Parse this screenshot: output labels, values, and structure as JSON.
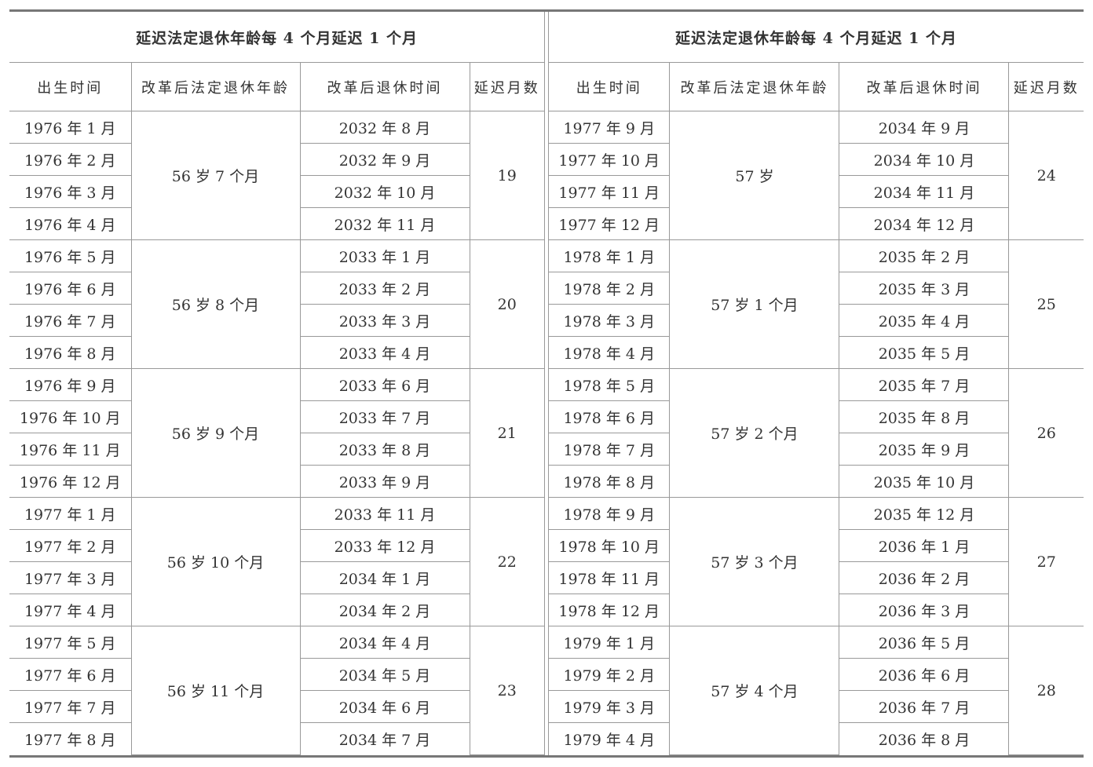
{
  "tables": [
    {
      "title": "延迟法定退休年龄每 4 个月延迟 1 个月",
      "headers": [
        "出生时间",
        "改革后法定退休年龄",
        "改革后退休时间",
        "延迟月数"
      ],
      "groups": [
        {
          "births": [
            "1976 年 1 月",
            "1976 年 2 月",
            "1976 年 3 月",
            "1976 年 4 月"
          ],
          "age": "56 岁 7 个月",
          "retire": [
            "2032 年 8 月",
            "2032 年 9 月",
            "2032 年 10 月",
            "2032 年 11 月"
          ],
          "delay": "19"
        },
        {
          "births": [
            "1976 年 5 月",
            "1976 年 6 月",
            "1976 年 7 月",
            "1976 年 8 月"
          ],
          "age": "56 岁 8 个月",
          "retire": [
            "2033 年 1 月",
            "2033 年 2 月",
            "2033 年 3 月",
            "2033 年 4 月"
          ],
          "delay": "20"
        },
        {
          "births": [
            "1976 年 9 月",
            "1976 年 10 月",
            "1976 年 11 月",
            "1976 年 12 月"
          ],
          "age": "56 岁 9 个月",
          "retire": [
            "2033 年 6 月",
            "2033 年 7 月",
            "2033 年 8 月",
            "2033 年 9 月"
          ],
          "delay": "21"
        },
        {
          "births": [
            "1977 年 1 月",
            "1977 年 2 月",
            "1977 年 3 月",
            "1977 年 4 月"
          ],
          "age": "56 岁 10 个月",
          "retire": [
            "2033 年 11 月",
            "2033 年 12 月",
            "2034 年 1 月",
            "2034 年 2 月"
          ],
          "delay": "22"
        },
        {
          "births": [
            "1977 年 5 月",
            "1977 年 6 月",
            "1977 年 7 月",
            "1977 年 8 月"
          ],
          "age": "56 岁 11 个月",
          "retire": [
            "2034 年 4 月",
            "2034 年 5 月",
            "2034 年 6 月",
            "2034 年 7 月"
          ],
          "delay": "23"
        }
      ]
    },
    {
      "title": "延迟法定退休年龄每 4 个月延迟 1 个月",
      "headers": [
        "出生时间",
        "改革后法定退休年龄",
        "改革后退休时间",
        "延迟月数"
      ],
      "groups": [
        {
          "births": [
            "1977 年 9 月",
            "1977 年 10 月",
            "1977 年 11 月",
            "1977 年 12 月"
          ],
          "age": "57 岁",
          "retire": [
            "2034 年 9 月",
            "2034 年 10 月",
            "2034 年 11 月",
            "2034 年 12 月"
          ],
          "delay": "24"
        },
        {
          "births": [
            "1978 年 1 月",
            "1978 年 2 月",
            "1978 年 3 月",
            "1978 年 4 月"
          ],
          "age": "57 岁 1 个月",
          "retire": [
            "2035 年 2 月",
            "2035 年 3 月",
            "2035 年 4 月",
            "2035 年 5 月"
          ],
          "delay": "25"
        },
        {
          "births": [
            "1978 年 5 月",
            "1978 年 6 月",
            "1978 年 7 月",
            "1978 年 8 月"
          ],
          "age": "57 岁 2 个月",
          "retire": [
            "2035 年 7 月",
            "2035 年 8 月",
            "2035 年 9 月",
            "2035 年 10 月"
          ],
          "delay": "26"
        },
        {
          "births": [
            "1978 年 9 月",
            "1978 年 10 月",
            "1978 年 11 月",
            "1978 年 12 月"
          ],
          "age": "57 岁 3 个月",
          "retire": [
            "2035 年 12 月",
            "2036 年 1 月",
            "2036 年 2 月",
            "2036 年 3 月"
          ],
          "delay": "27"
        },
        {
          "births": [
            "1979 年 1 月",
            "1979 年 2 月",
            "1979 年 3 月",
            "1979 年 4 月"
          ],
          "age": "57 岁 4 个月",
          "retire": [
            "2036 年 5 月",
            "2036 年 6 月",
            "2036 年 7 月",
            "2036 年 8 月"
          ],
          "delay": "28"
        }
      ]
    }
  ]
}
